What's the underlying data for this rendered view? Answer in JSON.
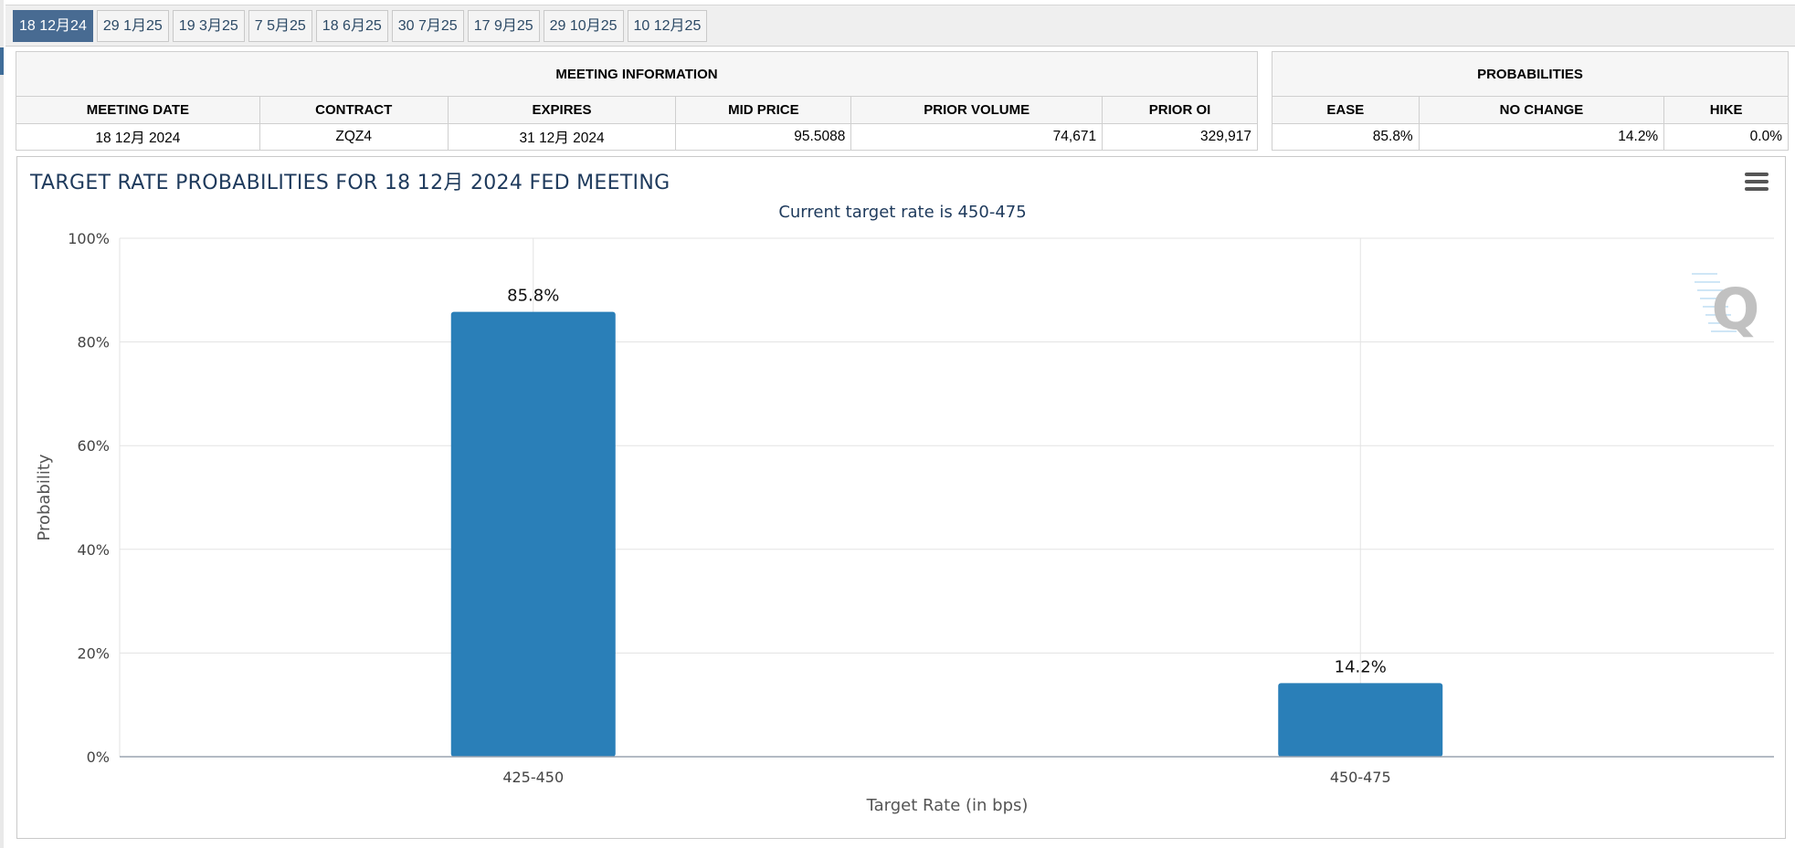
{
  "tabs": [
    "18 12月24",
    "29 1月25",
    "19 3月25",
    "7 5月25",
    "18 6月25",
    "30 7月25",
    "17 9月25",
    "29 10月25",
    "10 12月25"
  ],
  "active_tab_index": 0,
  "meeting_info": {
    "title": "MEETING INFORMATION",
    "columns": [
      "MEETING DATE",
      "CONTRACT",
      "EXPIRES",
      "MID PRICE",
      "PRIOR VOLUME",
      "PRIOR OI"
    ],
    "values": [
      "18 12月 2024",
      "ZQZ4",
      "31 12月 2024",
      "95.5088",
      "74,671",
      "329,917"
    ]
  },
  "probabilities": {
    "title": "PROBABILITIES",
    "columns": [
      "EASE",
      "NO CHANGE",
      "HIKE"
    ],
    "values": [
      "85.8%",
      "14.2%",
      "0.0%"
    ]
  },
  "chart": {
    "menu_icon": "hamburger-menu-icon",
    "watermark_icon": "q-logo-watermark",
    "bar_color": "#2a7fb8"
  },
  "chart_data": {
    "type": "bar",
    "title": "TARGET RATE PROBABILITIES FOR 18 12月 2024 FED MEETING",
    "subtitle": "Current target rate is 450-475",
    "xlabel": "Target Rate (in bps)",
    "ylabel": "Probability",
    "categories": [
      "425-450",
      "450-475"
    ],
    "values": [
      85.8,
      14.2
    ],
    "data_labels": [
      "85.8%",
      "14.2%"
    ],
    "ylim": [
      0,
      100
    ],
    "yticks": [
      0,
      20,
      40,
      60,
      80,
      100
    ],
    "ytick_labels": [
      "0%",
      "20%",
      "40%",
      "60%",
      "80%",
      "100%"
    ],
    "grid": true,
    "legend": false
  }
}
